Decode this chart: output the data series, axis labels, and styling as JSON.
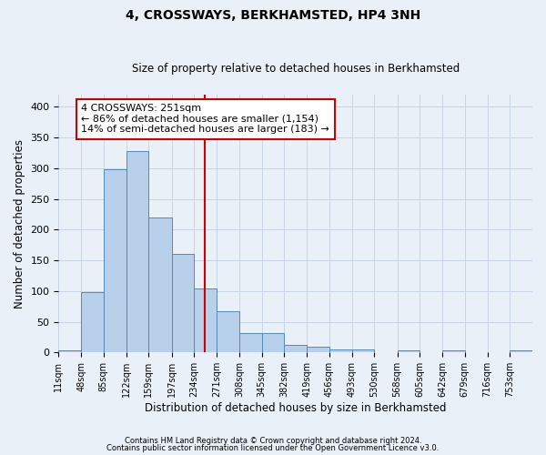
{
  "title": "4, CROSSWAYS, BERKHAMSTED, HP4 3NH",
  "subtitle": "Size of property relative to detached houses in Berkhamsted",
  "xlabel": "Distribution of detached houses by size in Berkhamsted",
  "ylabel": "Number of detached properties",
  "footnote1": "Contains HM Land Registry data © Crown copyright and database right 2024.",
  "footnote2": "Contains public sector information licensed under the Open Government Licence v3.0.",
  "bar_labels": [
    "11sqm",
    "48sqm",
    "85sqm",
    "122sqm",
    "159sqm",
    "197sqm",
    "234sqm",
    "271sqm",
    "308sqm",
    "345sqm",
    "382sqm",
    "419sqm",
    "456sqm",
    "493sqm",
    "530sqm",
    "568sqm",
    "605sqm",
    "642sqm",
    "679sqm",
    "716sqm",
    "753sqm"
  ],
  "bar_values": [
    4,
    98,
    298,
    328,
    220,
    160,
    105,
    67,
    32,
    32,
    12,
    10,
    5,
    5,
    0,
    3,
    0,
    3,
    0,
    0,
    3
  ],
  "bar_color": "#b8d0ea",
  "bar_edge_color": "#5588bb",
  "grid_color": "#c8d4e4",
  "background_color": "#eaf0f8",
  "annotation_line_color": "#cc0000",
  "annotation_box_text": "4 CROSSWAYS: 251sqm\n← 86% of detached houses are smaller (1,154)\n14% of semi-detached houses are larger (183) →",
  "annotation_box_color": "#ffffff",
  "annotation_box_edge_color": "#cc0000",
  "ylim": [
    0,
    420
  ],
  "bin_edges": [
    11,
    48,
    85,
    122,
    159,
    197,
    234,
    271,
    308,
    345,
    382,
    419,
    456,
    493,
    530,
    568,
    605,
    642,
    679,
    716,
    753,
    790
  ],
  "property_size": 251
}
